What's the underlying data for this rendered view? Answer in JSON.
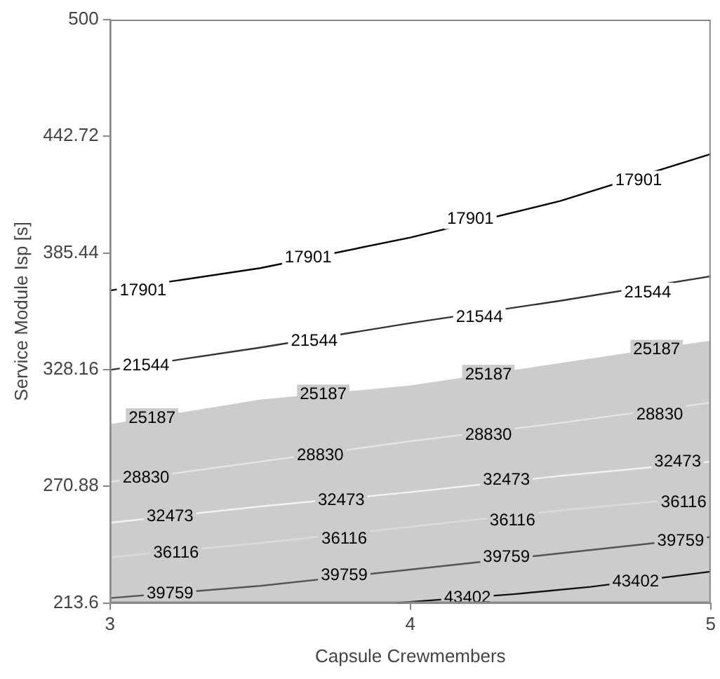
{
  "chart_data": {
    "type": "line",
    "xlabel": "Capsule Crewmembers",
    "ylabel": "Service Module Isp [s]",
    "xlim": [
      3,
      5
    ],
    "xticks": [
      3,
      4,
      5
    ],
    "ylim": [
      213.6,
      500
    ],
    "yticks": [
      213.6,
      270.88,
      328.16,
      385.44,
      442.72,
      500
    ],
    "grid": false,
    "legend": false,
    "marker": "none",
    "line_style": "solid",
    "series": [
      {
        "color": "#000000",
        "x": [
          3,
          3.5,
          4,
          4.5,
          5
        ],
        "values": [
          367,
          378,
          393,
          411,
          434
        ]
      },
      {
        "color": "#333333",
        "x": [
          3,
          3.5,
          4,
          4.5,
          5
        ],
        "values": [
          328,
          339,
          351,
          362,
          374
        ]
      },
      {
        "type": "area",
        "color": "#cccccc",
        "x": [
          3,
          3.5,
          4,
          4.5,
          5
        ],
        "values": [
          301,
          313,
          320,
          331,
          342
        ]
      },
      {
        "color": "#e4e4e4",
        "x": [
          3,
          3.5,
          4,
          4.5,
          5
        ],
        "values": [
          273,
          283,
          293,
          302,
          312
        ]
      },
      {
        "color": "#f2f2f2",
        "x": [
          3,
          3.5,
          4,
          4.5,
          5
        ],
        "values": [
          253,
          261,
          268,
          276,
          283
        ]
      },
      {
        "color": "#dadada",
        "x": [
          3,
          3.5,
          4,
          4.5,
          5
        ],
        "values": [
          236,
          243,
          251,
          259,
          266
        ]
      },
      {
        "color": "#555555",
        "x": [
          3,
          3.5,
          4,
          4.5,
          5
        ],
        "values": [
          216,
          222,
          230,
          238,
          246
        ]
      },
      {
        "color": "#111111",
        "x": [
          3.95,
          4.35,
          4.6,
          5
        ],
        "values": [
          213.6,
          218,
          221.5,
          229
        ]
      }
    ],
    "annotations": [
      {
        "text": "17901",
        "x": 3.11,
        "y": 367
      },
      {
        "text": "17901",
        "x": 3.66,
        "y": 383
      },
      {
        "text": "17901",
        "x": 4.2,
        "y": 402
      },
      {
        "text": "17901",
        "x": 4.76,
        "y": 421
      },
      {
        "text": "21544",
        "x": 3.12,
        "y": 330
      },
      {
        "text": "21544",
        "x": 3.68,
        "y": 342
      },
      {
        "text": "21544",
        "x": 4.23,
        "y": 354
      },
      {
        "text": "21544",
        "x": 4.79,
        "y": 366
      },
      {
        "text": "25187",
        "x": 3.14,
        "y": 304.4
      },
      {
        "text": "25187",
        "x": 3.71,
        "y": 316
      },
      {
        "text": "25187",
        "x": 4.26,
        "y": 325.7
      },
      {
        "text": "25187",
        "x": 4.82,
        "y": 338
      },
      {
        "text": "28830",
        "x": 3.12,
        "y": 275
      },
      {
        "text": "28830",
        "x": 3.7,
        "y": 286
      },
      {
        "text": "28830",
        "x": 4.26,
        "y": 296
      },
      {
        "text": "28830",
        "x": 4.83,
        "y": 306
      },
      {
        "text": "32473",
        "x": 3.2,
        "y": 256
      },
      {
        "text": "32473",
        "x": 3.77,
        "y": 264
      },
      {
        "text": "32473",
        "x": 4.32,
        "y": 274
      },
      {
        "text": "32473",
        "x": 4.89,
        "y": 283
      },
      {
        "text": "36116",
        "x": 3.22,
        "y": 238
      },
      {
        "text": "36116",
        "x": 3.78,
        "y": 245
      },
      {
        "text": "36116",
        "x": 4.34,
        "y": 254
      },
      {
        "text": "36116",
        "x": 4.91,
        "y": 263
      },
      {
        "text": "39759",
        "x": 3.2,
        "y": 218
      },
      {
        "text": "39759",
        "x": 3.78,
        "y": 227
      },
      {
        "text": "39759",
        "x": 4.32,
        "y": 236
      },
      {
        "text": "39759",
        "x": 4.9,
        "y": 244
      },
      {
        "text": "43402",
        "x": 4.19,
        "y": 216
      },
      {
        "text": "43402",
        "x": 4.75,
        "y": 224
      }
    ]
  }
}
